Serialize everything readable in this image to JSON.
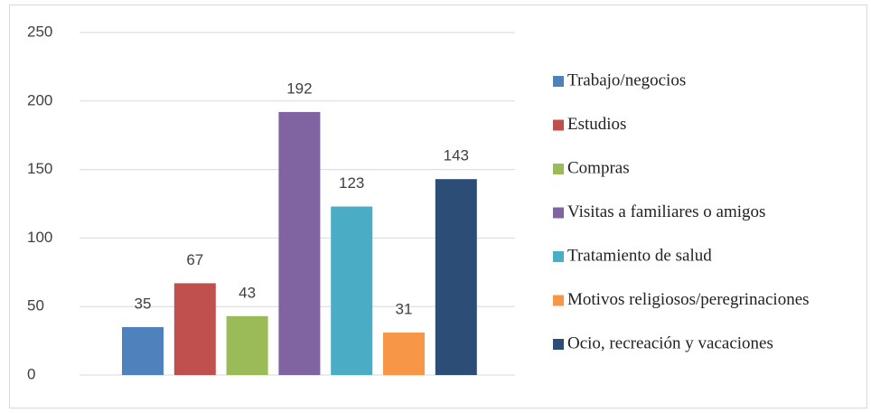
{
  "chart_data": {
    "type": "bar",
    "series": [
      {
        "name": "Trabajo/negocios",
        "color": "#4f81bd",
        "values": [
          35
        ]
      },
      {
        "name": "Estudios",
        "color": "#c0504d",
        "values": [
          67
        ]
      },
      {
        "name": "Compras",
        "color": "#9bbb59",
        "values": [
          43
        ]
      },
      {
        "name": "Visitas a familiares o amigos",
        "color": "#8064a2",
        "values": [
          192
        ]
      },
      {
        "name": "Tratamiento de salud",
        "color": "#4bacc6",
        "values": [
          123
        ]
      },
      {
        "name": "Motivos religiosos/peregrinaciones",
        "color": "#f79646",
        "values": [
          31
        ]
      },
      {
        "name": "Ocio, recreación y vacaciones",
        "color": "#2c4d75",
        "values": [
          143
        ]
      }
    ],
    "ylim": [
      0,
      250
    ],
    "yticks": [
      0,
      50,
      100,
      150,
      200,
      250
    ],
    "grid": true,
    "legend": "right"
  }
}
